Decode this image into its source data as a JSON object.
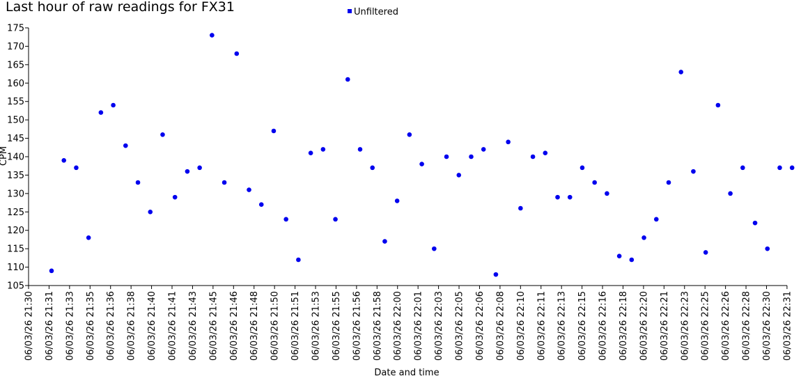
{
  "colors": {
    "marker": "#0000ee",
    "axis": "#000000",
    "background": "#ffffff"
  },
  "chart_data": {
    "type": "scatter",
    "title": "Last hour of raw readings for FX31",
    "xlabel": "Date and time",
    "ylabel": "CPM",
    "ylim": [
      105,
      175
    ],
    "y_ticks": [
      105,
      110,
      115,
      120,
      125,
      130,
      135,
      140,
      145,
      150,
      155,
      160,
      165,
      170,
      175
    ],
    "x_tick_labels": [
      "06/03/26 21:30",
      "06/03/26 21:31",
      "06/03/26 21:33",
      "06/03/26 21:35",
      "06/03/26 21:36",
      "06/03/26 21:38",
      "06/03/26 21:40",
      "06/03/26 21:41",
      "06/03/26 21:43",
      "06/03/26 21:45",
      "06/03/26 21:46",
      "06/03/26 21:48",
      "06/03/26 21:50",
      "06/03/26 21:51",
      "06/03/26 21:53",
      "06/03/26 21:55",
      "06/03/26 21:56",
      "06/03/26 21:58",
      "06/03/26 22:00",
      "06/03/26 22:01",
      "06/03/26 22:03",
      "06/03/26 22:05",
      "06/03/26 22:06",
      "06/03/26 22:08",
      "06/03/26 22:10",
      "06/03/26 22:11",
      "06/03/26 22:13",
      "06/03/26 22:15",
      "06/03/26 22:16",
      "06/03/26 22:18",
      "06/03/26 22:20",
      "06/03/26 22:21",
      "06/03/26 22:23",
      "06/03/26 22:25",
      "06/03/26 22:26",
      "06/03/26 22:28",
      "06/03/26 22:30",
      "06/03/26 22:31"
    ],
    "legend": {
      "position": "top-center",
      "entries": [
        "Unfiltered"
      ]
    },
    "grid": false,
    "series": [
      {
        "name": "Unfiltered",
        "x": [
          "06/03/26 21:31:00",
          "06/03/26 21:32:00",
          "06/03/26 21:33:00",
          "06/03/26 21:34:00",
          "06/03/26 21:35:00",
          "06/03/26 21:36:00",
          "06/03/26 21:37:00",
          "06/03/26 21:38:00",
          "06/03/26 21:39:00",
          "06/03/26 21:40:00",
          "06/03/26 21:41:00",
          "06/03/26 21:42:00",
          "06/03/26 21:43:00",
          "06/03/26 21:44:00",
          "06/03/26 21:45:00",
          "06/03/26 21:46:00",
          "06/03/26 21:47:00",
          "06/03/26 21:48:00",
          "06/03/26 21:49:00",
          "06/03/26 21:50:00",
          "06/03/26 21:51:00",
          "06/03/26 21:52:00",
          "06/03/26 21:53:00",
          "06/03/26 21:54:00",
          "06/03/26 21:55:00",
          "06/03/26 21:56:00",
          "06/03/26 21:57:00",
          "06/03/26 21:58:00",
          "06/03/26 21:59:00",
          "06/03/26 22:00:00",
          "06/03/26 22:01:00",
          "06/03/26 22:02:00",
          "06/03/26 22:03:00",
          "06/03/26 22:04:00",
          "06/03/26 22:05:00",
          "06/03/26 22:06:00",
          "06/03/26 22:07:00",
          "06/03/26 22:08:00",
          "06/03/26 22:09:00",
          "06/03/26 22:10:00",
          "06/03/26 22:11:00",
          "06/03/26 22:12:00",
          "06/03/26 22:13:00",
          "06/03/26 22:14:00",
          "06/03/26 22:15:00",
          "06/03/26 22:16:00",
          "06/03/26 22:17:00",
          "06/03/26 22:18:00",
          "06/03/26 22:19:00",
          "06/03/26 22:20:00",
          "06/03/26 22:21:00",
          "06/03/26 22:22:00",
          "06/03/26 22:23:00",
          "06/03/26 22:24:00",
          "06/03/26 22:25:00",
          "06/03/26 22:26:00",
          "06/03/26 22:27:00",
          "06/03/26 22:28:00",
          "06/03/26 22:29:00",
          "06/03/26 22:30:00",
          "06/03/26 22:31:00"
        ],
        "y": [
          109,
          139,
          137,
          118,
          152,
          154,
          143,
          133,
          125,
          146,
          129,
          136,
          137,
          173,
          133,
          168,
          131,
          127,
          147,
          123,
          112,
          141,
          142,
          123,
          161,
          142,
          137,
          117,
          128,
          146,
          138,
          115,
          140,
          135,
          140,
          142,
          108,
          144,
          126,
          140,
          141,
          129,
          129,
          137,
          133,
          130,
          113,
          112,
          118,
          123,
          133,
          163,
          136,
          114,
          154,
          130,
          137,
          122,
          115,
          137,
          137
        ]
      }
    ]
  }
}
